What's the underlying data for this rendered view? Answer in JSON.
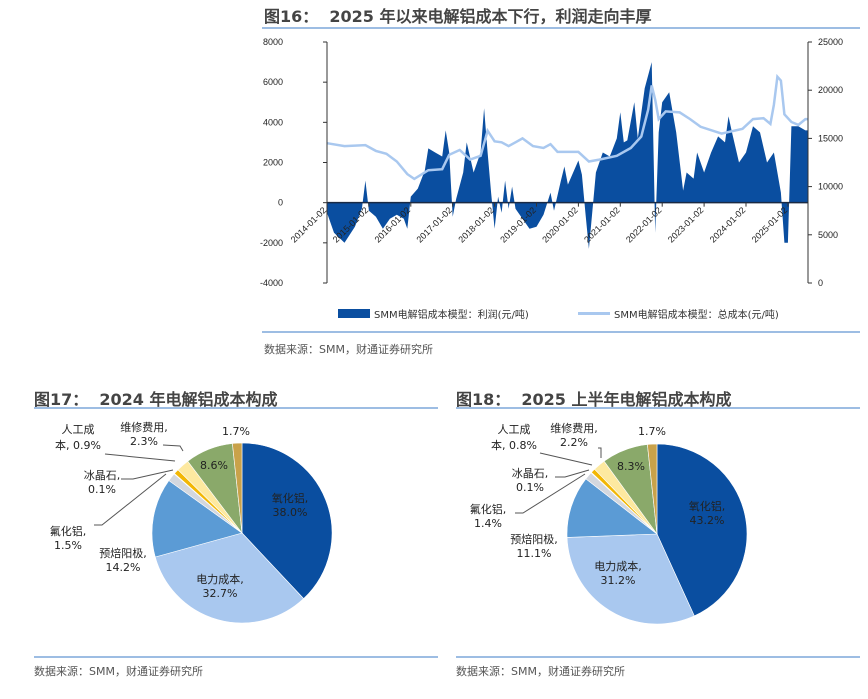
{
  "fig16": {
    "title": "图16：  2025 年以来电解铝成本下行，利润走向丰厚",
    "source": "数据来源：SMM，财通证券研究所"
  },
  "fig17": {
    "title": "图17：  2024 年电解铝成本构成",
    "source": "数据来源：SMM，财通证券研究所"
  },
  "fig18": {
    "title": "图18：  2025 上半年电解铝成本构成",
    "source": "数据来源：SMM，财通证券研究所"
  },
  "colors": {
    "profit": "#0a4ea0",
    "cost": "#a9c8ef",
    "axis": "#333333"
  },
  "chart_data": [
    {
      "type": "area+line",
      "title": "2025 年以来电解铝成本下行，利润走向丰厚",
      "left_axis": {
        "ylim": [
          -4000,
          8000
        ],
        "ticks": [
          "8000",
          "6000",
          "4000",
          "2000",
          "0",
          "-2000",
          "-4000"
        ]
      },
      "right_axis": {
        "ylim": [
          0,
          25000
        ],
        "ticks": [
          "25000",
          "20000",
          "15000",
          "10000",
          "5000",
          "0"
        ]
      },
      "x_ticks": [
        "2014-01-02",
        "2015-01-02",
        "2016-01-02",
        "2017-01-02",
        "2018-01-02",
        "2019-01-02",
        "2020-01-02",
        "2021-01-02",
        "2022-01-02",
        "2023-01-02",
        "2024-01-02",
        "2025-01-02"
      ],
      "legend": [
        "SMM电解铝成本模型：利润(元/吨)",
        "SMM电解铝成本模型：总成本(元/吨)"
      ],
      "legend_position": "bottom",
      "series": [
        {
          "name": "SMM电解铝成本模型：利润(元/吨)",
          "axis": "left",
          "type": "area",
          "points": [
            [
              "2014-01",
              -500
            ],
            [
              "2014-03",
              -1500
            ],
            [
              "2014-06",
              -2000
            ],
            [
              "2014-09",
              -1200
            ],
            [
              "2014-11",
              -300
            ],
            [
              "2014-12",
              1100
            ],
            [
              "2015-01",
              -400
            ],
            [
              "2015-03",
              -700
            ],
            [
              "2015-05",
              -1300
            ],
            [
              "2015-07",
              -800
            ],
            [
              "2015-09",
              -600
            ],
            [
              "2015-11",
              -800
            ],
            [
              "2015-12",
              -1300
            ],
            [
              "2016-01",
              300
            ],
            [
              "2016-03",
              700
            ],
            [
              "2016-05",
              1600
            ],
            [
              "2016-06",
              2700
            ],
            [
              "2016-08",
              2500
            ],
            [
              "2016-10",
              2300
            ],
            [
              "2016-11",
              3600
            ],
            [
              "2016-12",
              2500
            ],
            [
              "2017-01",
              -700
            ],
            [
              "2017-02",
              200
            ],
            [
              "2017-04",
              1500
            ],
            [
              "2017-05",
              3000
            ],
            [
              "2017-07",
              1500
            ],
            [
              "2017-09",
              2500
            ],
            [
              "2017-10",
              4700
            ],
            [
              "2017-11",
              2500
            ],
            [
              "2017-12",
              500
            ],
            [
              "2018-01",
              -1300
            ],
            [
              "2018-02",
              300
            ],
            [
              "2018-03",
              -500
            ],
            [
              "2018-04",
              1100
            ],
            [
              "2018-05",
              -300
            ],
            [
              "2018-06",
              800
            ],
            [
              "2018-07",
              -300
            ],
            [
              "2018-09",
              -800
            ],
            [
              "2018-11",
              -1300
            ],
            [
              "2019-01",
              -1200
            ],
            [
              "2019-03",
              -600
            ],
            [
              "2019-05",
              500
            ],
            [
              "2019-06",
              -400
            ],
            [
              "2019-08",
              1100
            ],
            [
              "2019-09",
              1800
            ],
            [
              "2019-10",
              900
            ],
            [
              "2019-12",
              1700
            ],
            [
              "2020-01",
              2100
            ],
            [
              "2020-02",
              1400
            ],
            [
              "2020-03",
              -500
            ],
            [
              "2020-04",
              -2300
            ],
            [
              "2020-05",
              -400
            ],
            [
              "2020-06",
              1500
            ],
            [
              "2020-08",
              2500
            ],
            [
              "2020-10",
              2300
            ],
            [
              "2020-12",
              3200
            ],
            [
              "2021-01",
              4500
            ],
            [
              "2021-02",
              3000
            ],
            [
              "2021-03",
              3100
            ],
            [
              "2021-05",
              5000
            ],
            [
              "2021-06",
              3200
            ],
            [
              "2021-08",
              5700
            ],
            [
              "2021-10",
              7000
            ],
            [
              "2021-11",
              -1500
            ],
            [
              "2021-12",
              3500
            ],
            [
              "2022-01",
              5000
            ],
            [
              "2022-03",
              5500
            ],
            [
              "2022-05",
              3500
            ],
            [
              "2022-07",
              600
            ],
            [
              "2022-08",
              1500
            ],
            [
              "2022-10",
              1200
            ],
            [
              "2022-11",
              2500
            ],
            [
              "2023-01",
              1500
            ],
            [
              "2023-03",
              2500
            ],
            [
              "2023-05",
              3300
            ],
            [
              "2023-07",
              3000
            ],
            [
              "2023-08",
              4300
            ],
            [
              "2023-09",
              3500
            ],
            [
              "2023-11",
              2000
            ],
            [
              "2024-01",
              2500
            ],
            [
              "2024-03",
              3800
            ],
            [
              "2024-05",
              3500
            ],
            [
              "2024-07",
              2000
            ],
            [
              "2024-09",
              2500
            ],
            [
              "2024-11",
              500
            ],
            [
              "2024-12",
              -2000
            ],
            [
              "2025-01",
              -2000
            ],
            [
              "2025-02",
              3800
            ],
            [
              "2025-04",
              3800
            ],
            [
              "2025-06",
              3600
            ]
          ]
        },
        {
          "name": "SMM电解铝成本模型：总成本(元/吨)",
          "axis": "right",
          "type": "line",
          "points": [
            [
              "2014-01",
              14500
            ],
            [
              "2014-06",
              14200
            ],
            [
              "2014-12",
              14300
            ],
            [
              "2015-03",
              13700
            ],
            [
              "2015-06",
              13400
            ],
            [
              "2015-09",
              12600
            ],
            [
              "2015-12",
              11300
            ],
            [
              "2016-02",
              10800
            ],
            [
              "2016-06",
              11700
            ],
            [
              "2016-10",
              11800
            ],
            [
              "2016-12",
              13300
            ],
            [
              "2017-03",
              13800
            ],
            [
              "2017-06",
              12800
            ],
            [
              "2017-09",
              13200
            ],
            [
              "2017-11",
              15800
            ],
            [
              "2018-01",
              14700
            ],
            [
              "2018-03",
              14600
            ],
            [
              "2018-05",
              14200
            ],
            [
              "2018-07",
              14600
            ],
            [
              "2018-09",
              15000
            ],
            [
              "2018-12",
              14200
            ],
            [
              "2019-03",
              14000
            ],
            [
              "2019-05",
              14400
            ],
            [
              "2019-07",
              13600
            ],
            [
              "2019-10",
              13600
            ],
            [
              "2020-01",
              13600
            ],
            [
              "2020-04",
              12600
            ],
            [
              "2020-07",
              12800
            ],
            [
              "2020-12",
              13200
            ],
            [
              "2021-04",
              14000
            ],
            [
              "2021-07",
              15200
            ],
            [
              "2021-09",
              18000
            ],
            [
              "2021-10",
              20500
            ],
            [
              "2021-11",
              19000
            ],
            [
              "2021-12",
              17000
            ],
            [
              "2022-02",
              17800
            ],
            [
              "2022-06",
              17700
            ],
            [
              "2022-09",
              17000
            ],
            [
              "2022-12",
              16200
            ],
            [
              "2023-06",
              15500
            ],
            [
              "2023-12",
              16000
            ],
            [
              "2024-03",
              17000
            ],
            [
              "2024-06",
              17100
            ],
            [
              "2024-08",
              16500
            ],
            [
              "2024-09",
              18500
            ],
            [
              "2024-10",
              21400
            ],
            [
              "2024-11",
              21000
            ],
            [
              "2024-12",
              17500
            ],
            [
              "2025-02",
              16700
            ],
            [
              "2025-04",
              16400
            ],
            [
              "2025-06",
              17000
            ]
          ]
        }
      ]
    },
    {
      "type": "pie",
      "title": "2024 年电解铝成本构成",
      "slices": [
        {
          "name": "氧化铝",
          "value": 38.0,
          "label1": "氧化铝,",
          "label2": "38.0%",
          "color": "#0a4ea0"
        },
        {
          "name": "电力成本",
          "value": 32.7,
          "label1": "电力成本,",
          "label2": "32.7%",
          "color": "#a9c8ef"
        },
        {
          "name": "预焙阳极",
          "value": 14.2,
          "label1": "预焙阳极,",
          "label2": "14.2%",
          "color": "#5b9bd5"
        },
        {
          "name": "氟化铝",
          "value": 1.5,
          "label1": "氟化铝,",
          "label2": "1.5%",
          "color": "#d3d7de"
        },
        {
          "name": "冰晶石",
          "value": 0.1,
          "label1": "冰晶石,",
          "label2": "0.1%",
          "color": "#7f8fa6"
        },
        {
          "name": "人工成本",
          "value": 0.9,
          "label1": "人工成",
          "label2": "本, 0.9%",
          "color": "#f2b705"
        },
        {
          "name": "维修费用",
          "value": 2.3,
          "label1": "维修费用,",
          "label2": "2.3%",
          "color": "#fde9a0"
        },
        {
          "name": "",
          "value": 8.6,
          "label1": "",
          "label2": "8.6%",
          "color": "#8aa96a"
        },
        {
          "name": "",
          "value": 1.7,
          "label1": "",
          "label2": "1.7%",
          "color": "#c9a24a"
        }
      ]
    },
    {
      "type": "pie",
      "title": "2025 上半年电解铝成本构成",
      "slices": [
        {
          "name": "氧化铝",
          "value": 43.2,
          "label1": "氧化铝,",
          "label2": "43.2%",
          "color": "#0a4ea0"
        },
        {
          "name": "电力成本",
          "value": 31.2,
          "label1": "电力成本,",
          "label2": "31.2%",
          "color": "#a9c8ef"
        },
        {
          "name": "预焙阳极",
          "value": 11.1,
          "label1": "预焙阳极,",
          "label2": "11.1%",
          "color": "#5b9bd5"
        },
        {
          "name": "氟化铝",
          "value": 1.4,
          "label1": "氟化铝,",
          "label2": "1.4%",
          "color": "#d3d7de"
        },
        {
          "name": "冰晶石",
          "value": 0.1,
          "label1": "冰晶石,",
          "label2": "0.1%",
          "color": "#7f8fa6"
        },
        {
          "name": "人工成本",
          "value": 0.8,
          "label1": "人工成",
          "label2": "本, 0.8%",
          "color": "#f2b705"
        },
        {
          "name": "维修费用",
          "value": 2.2,
          "label1": "维修费用,",
          "label2": "2.2%",
          "color": "#fde9a0"
        },
        {
          "name": "",
          "value": 8.3,
          "label1": "",
          "label2": "8.3%",
          "color": "#8aa96a"
        },
        {
          "name": "",
          "value": 1.7,
          "label1": "",
          "label2": "1.7%",
          "color": "#c9a24a"
        }
      ]
    }
  ]
}
